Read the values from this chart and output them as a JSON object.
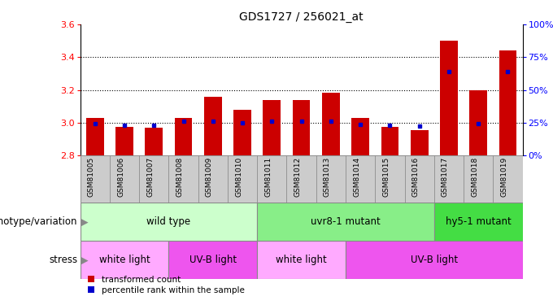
{
  "title": "GDS1727 / 256021_at",
  "samples": [
    "GSM81005",
    "GSM81006",
    "GSM81007",
    "GSM81008",
    "GSM81009",
    "GSM81010",
    "GSM81011",
    "GSM81012",
    "GSM81013",
    "GSM81014",
    "GSM81015",
    "GSM81016",
    "GSM81017",
    "GSM81018",
    "GSM81019"
  ],
  "bar_values": [
    3.03,
    2.975,
    2.97,
    3.03,
    3.16,
    3.08,
    3.14,
    3.14,
    3.185,
    3.03,
    2.975,
    2.955,
    3.5,
    3.2,
    3.44
  ],
  "blue_values": [
    2.993,
    2.985,
    2.985,
    3.01,
    3.01,
    3.0,
    3.01,
    3.01,
    3.01,
    2.99,
    2.985,
    2.978,
    3.31,
    2.995,
    3.31
  ],
  "bar_color": "#cc0000",
  "blue_color": "#0000cc",
  "ymin": 2.8,
  "ymax": 3.6,
  "yticks_left": [
    2.8,
    3.0,
    3.2,
    3.4,
    3.6
  ],
  "grid_vals": [
    3.0,
    3.2,
    3.4
  ],
  "right_pcts": [
    0,
    25,
    50,
    75,
    100
  ],
  "genotype_spans": [
    {
      "label": "wild type",
      "start": 0,
      "end": 6,
      "color": "#ccffcc"
    },
    {
      "label": "uvr8-1 mutant",
      "start": 6,
      "end": 12,
      "color": "#88ee88"
    },
    {
      "label": "hy5-1 mutant",
      "start": 12,
      "end": 15,
      "color": "#44dd44"
    }
  ],
  "stress_spans": [
    {
      "label": "white light",
      "start": 0,
      "end": 3,
      "color": "#ffaaff"
    },
    {
      "label": "UV-B light",
      "start": 3,
      "end": 6,
      "color": "#ee55ee"
    },
    {
      "label": "white light",
      "start": 6,
      "end": 9,
      "color": "#ffaaff"
    },
    {
      "label": "UV-B light",
      "start": 9,
      "end": 15,
      "color": "#ee55ee"
    }
  ],
  "legend_red": "transformed count",
  "legend_blue": "percentile rank within the sample",
  "label_genotype": "genotype/variation",
  "label_stress": "stress"
}
